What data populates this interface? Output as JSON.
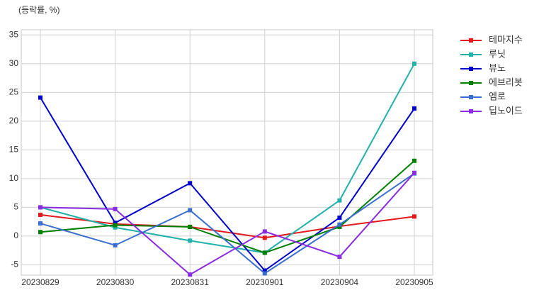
{
  "chart_data": {
    "type": "line",
    "ylabel": "(등락률, %)",
    "categories": [
      "20230829",
      "20230830",
      "20230831",
      "20230901",
      "20230904",
      "20230905"
    ],
    "series": [
      {
        "name": "테마지수",
        "color": "#e31a1c",
        "values": [
          3.7,
          2.1,
          1.6,
          -0.3,
          1.7,
          3.4
        ]
      },
      {
        "name": "루닛",
        "color": "#20b2aa",
        "values": [
          5.0,
          1.5,
          -0.8,
          -2.9,
          6.2,
          30.0
        ]
      },
      {
        "name": "뷰노",
        "color": "#0000cd",
        "values": [
          24.1,
          2.3,
          9.2,
          -6.0,
          3.2,
          22.2
        ]
      },
      {
        "name": "에브리봇",
        "color": "#008000",
        "values": [
          0.7,
          1.9,
          1.6,
          -2.9,
          1.6,
          13.1
        ]
      },
      {
        "name": "엠로",
        "color": "#3b6fcf",
        "values": [
          2.2,
          -1.6,
          4.5,
          -6.5,
          2.0,
          10.9
        ]
      },
      {
        "name": "딥노이드",
        "color": "#8a2be2",
        "values": [
          5.0,
          4.7,
          -6.7,
          0.8,
          -3.6,
          11.0
        ]
      }
    ],
    "ylim": [
      -6.8,
      35.9
    ],
    "yticks": [
      -5,
      0,
      5,
      10,
      15,
      20,
      25,
      30,
      35
    ],
    "grid": true,
    "legend": "outside-right"
  }
}
